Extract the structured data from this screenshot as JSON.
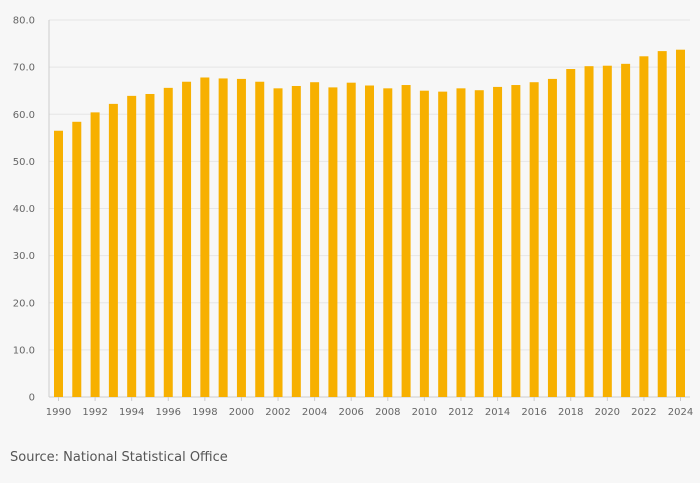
{
  "chart_data": {
    "type": "bar",
    "categories": [
      "1990",
      "1991",
      "1992",
      "1993",
      "1994",
      "1995",
      "1996",
      "1997",
      "1998",
      "1999",
      "2000",
      "2001",
      "2002",
      "2003",
      "2004",
      "2005",
      "2006",
      "2007",
      "2008",
      "2009",
      "2010",
      "2011",
      "2012",
      "2013",
      "2014",
      "2015",
      "2016",
      "2017",
      "2018",
      "2019",
      "2020",
      "2021",
      "2022",
      "2023",
      "2024"
    ],
    "x_tick_labels": [
      "1990",
      "1992",
      "1994",
      "1996",
      "1998",
      "2000",
      "2002",
      "2004",
      "2006",
      "2008",
      "2010",
      "2012",
      "2014",
      "2016",
      "2018",
      "2020",
      "2022",
      "2024"
    ],
    "values": [
      56.5,
      58.4,
      60.4,
      62.2,
      63.9,
      64.3,
      65.6,
      66.9,
      67.8,
      67.6,
      67.5,
      66.9,
      65.5,
      66.0,
      66.8,
      65.7,
      66.7,
      66.1,
      65.5,
      66.2,
      65.0,
      64.8,
      65.5,
      65.1,
      65.8,
      66.2,
      66.8,
      67.5,
      69.6,
      70.2,
      70.3,
      70.7,
      72.3,
      73.4,
      73.7
    ],
    "ylim": [
      0,
      80
    ],
    "y_ticks": [
      0,
      10,
      20,
      30,
      40,
      50,
      60,
      70,
      80
    ],
    "y_tick_labels": [
      "0",
      "10.0",
      "20.0",
      "30.0",
      "40.0",
      "50.0",
      "60.0",
      "70.0",
      "80.0"
    ],
    "grid": true,
    "bar_color": "#f7b000",
    "grid_color": "#e6e6e6",
    "axis_color": "#cccccc"
  },
  "source": "Source: National Statistical Office"
}
